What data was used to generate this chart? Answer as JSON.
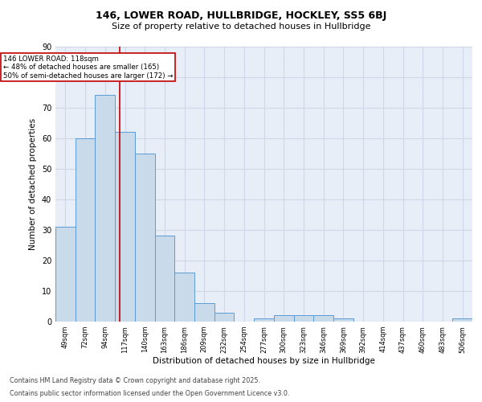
{
  "title_line1": "146, LOWER ROAD, HULLBRIDGE, HOCKLEY, SS5 6BJ",
  "title_line2": "Size of property relative to detached houses in Hullbridge",
  "xlabel": "Distribution of detached houses by size in Hullbridge",
  "ylabel": "Number of detached properties",
  "categories": [
    "49sqm",
    "72sqm",
    "94sqm",
    "117sqm",
    "140sqm",
    "163sqm",
    "186sqm",
    "209sqm",
    "232sqm",
    "254sqm",
    "277sqm",
    "300sqm",
    "323sqm",
    "346sqm",
    "369sqm",
    "392sqm",
    "414sqm",
    "437sqm",
    "460sqm",
    "483sqm",
    "506sqm"
  ],
  "values": [
    31,
    60,
    74,
    62,
    55,
    28,
    16,
    6,
    3,
    0,
    1,
    2,
    2,
    2,
    1,
    0,
    0,
    0,
    0,
    0,
    1
  ],
  "bar_color": "#c9daea",
  "bar_edge_color": "#5b9bd5",
  "bar_width": 1.0,
  "vline_x": 2.72,
  "vline_color": "#c00000",
  "annotation_text": "146 LOWER ROAD: 118sqm\n← 48% of detached houses are smaller (165)\n50% of semi-detached houses are larger (172) →",
  "annotation_box_color": "#c00000",
  "ylim": [
    0,
    90
  ],
  "yticks": [
    0,
    10,
    20,
    30,
    40,
    50,
    60,
    70,
    80,
    90
  ],
  "grid_color": "#d0d8e8",
  "bg_color": "#e8eef7",
  "footer_line1": "Contains HM Land Registry data © Crown copyright and database right 2025.",
  "footer_line2": "Contains public sector information licensed under the Open Government Licence v3.0."
}
